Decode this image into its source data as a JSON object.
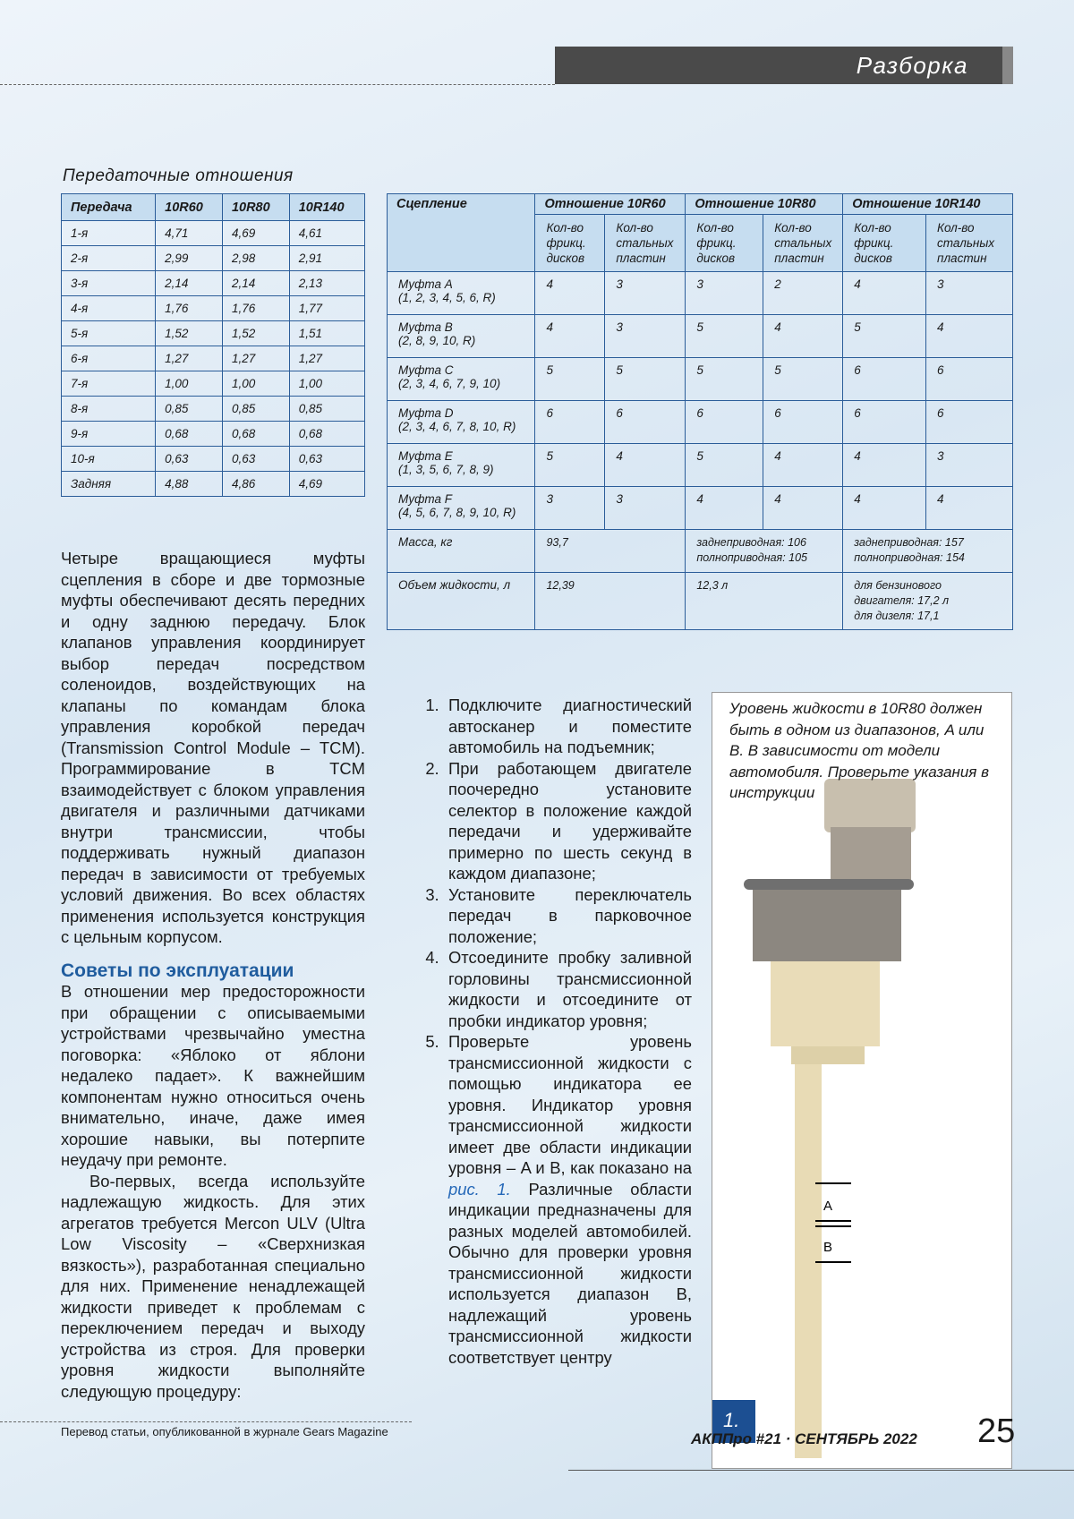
{
  "header": {
    "section": "Разборка"
  },
  "table1": {
    "caption": "Передаточные отношения",
    "headers": [
      "Передача",
      "10R60",
      "10R80",
      "10R140"
    ],
    "rows": [
      [
        "1-я",
        "4,71",
        "4,69",
        "4,61"
      ],
      [
        "2-я",
        "2,99",
        "2,98",
        "2,91"
      ],
      [
        "3-я",
        "2,14",
        "2,14",
        "2,13"
      ],
      [
        "4-я",
        "1,76",
        "1,76",
        "1,77"
      ],
      [
        "5-я",
        "1,52",
        "1,52",
        "1,51"
      ],
      [
        "6-я",
        "1,27",
        "1,27",
        "1,27"
      ],
      [
        "7-я",
        "1,00",
        "1,00",
        "1,00"
      ],
      [
        "8-я",
        "0,85",
        "0,85",
        "0,85"
      ],
      [
        "9-я",
        "0,68",
        "0,68",
        "0,68"
      ],
      [
        "10-я",
        "0,63",
        "0,63",
        "0,63"
      ],
      [
        "Задняя",
        "4,88",
        "4,86",
        "4,69"
      ]
    ]
  },
  "table2": {
    "clutch_header": "Сцепление",
    "groups": [
      "Отношение 10R60",
      "Отношение 10R80",
      "Отношение 10R140"
    ],
    "subheaders": [
      "Кол-во фрикц. дисков",
      "Кол-во стальных пластин",
      "Кол-во фрикц. дисков",
      "Кол-во стальных пластин",
      "Кол-во фрикц. дисков",
      "Кол-во стальных пластин"
    ],
    "rows": [
      {
        "name": "Муфта A",
        "gears": "(1, 2, 3, 4, 5, 6, R)",
        "values": [
          "4",
          "3",
          "3",
          "2",
          "4",
          "3"
        ]
      },
      {
        "name": "Муфта B",
        "gears": "(2, 8, 9, 10, R)",
        "values": [
          "4",
          "3",
          "5",
          "4",
          "5",
          "4"
        ]
      },
      {
        "name": "Муфта C",
        "gears": "(2, 3, 4, 6, 7, 9, 10)",
        "values": [
          "5",
          "5",
          "5",
          "5",
          "6",
          "6"
        ]
      },
      {
        "name": "Муфта D",
        "gears": "(2, 3, 4, 6, 7, 8, 10, R)",
        "values": [
          "6",
          "6",
          "6",
          "6",
          "6",
          "6"
        ]
      },
      {
        "name": "Муфта E",
        "gears": "(1, 3, 5, 6, 7, 8, 9)",
        "values": [
          "5",
          "4",
          "5",
          "4",
          "4",
          "3"
        ]
      },
      {
        "name": "Муфта F",
        "gears": "(4, 5, 6, 7, 8, 9, 10, R)",
        "values": [
          "3",
          "3",
          "4",
          "4",
          "4",
          "4"
        ]
      }
    ],
    "summary": [
      {
        "name": "Масса, кг",
        "values": [
          [
            "93,7"
          ],
          [
            "заднеприводная: 106",
            "полноприводная: 105"
          ],
          [
            "заднеприводная: 157",
            "полноприводная: 154"
          ]
        ]
      },
      {
        "name": "Объем жидкости, л",
        "values": [
          [
            "12,39"
          ],
          [
            "12,3 л"
          ],
          [
            "для бензинового",
            "двигателя: 17,2 л",
            "для дизеля: 17,1"
          ]
        ]
      }
    ]
  },
  "body": {
    "intro": "Четыре вращающиеся муфты сцепления в сборе и две тормозные муфты обеспечивают десять передних и одну заднюю передачу. Блок клапанов управления координирует выбор передач посредством соленоидов, воздействующих на клапаны по командам блока управления коробкой передач (Transmission Control Module – TCM). Программирование в TCM взаимодействует с блоком управления двигателя и различными датчиками внутри трансмиссии, чтобы поддерживать нужный диапазон передач в зависимости от требуемых условий движения. Во всех областях применения используется конструкция с цельным корпусом.",
    "heading": "Советы по эксплуатации",
    "paragraphs": [
      "В отношении мер предосторожности при обращении с описываемыми устройствами чрезвычайно уместна поговорка: «Яблоко от яблони недалеко падает». К важнейшим компонентам нужно относиться очень внимательно, иначе, даже имея хорошие навыки, вы потерпите неудачу при ремонте.",
      "Во-первых, всегда используйте надлежащую жидкость. Для этих агрегатов требуется Mercon ULV (Ultra Low Viscosity – «Сверхнизкая вязкость»), разработанная специально для них. Применение ненадлежащей жидкости приведет к проблемам с переключением передач и выходу устройства из строя. Для проверки уровня жидкости выполняйте следующую процедуру:"
    ],
    "steps": [
      {
        "number": "1.",
        "text": "Подключите диагностический автосканер и поместите автомобиль на подъемник;"
      },
      {
        "number": "2.",
        "text": "При работающем двигателе поочередно установите селектор в положение каждой передачи и удерживайте примерно по шесть секунд в каждом диапазоне;"
      },
      {
        "number": "3.",
        "text": "Установите переключатель передач в парковочное положение;"
      },
      {
        "number": "4.",
        "text": "Отсоедините пробку заливной горловины трансмиссионной жидкости и отсоедините от пробки индикатор уровня;"
      },
      {
        "number": "5.",
        "text": "Проверьте уровень трансмиссионной жидкости с помощью индикатора ее уровня. Индикатор уровня трансмиссионной жидкости имеет две области индикации уровня – A и B, как показано на ",
        "link": "рис. 1.",
        "text_after": " Различные области индикации предназначены для разных моделей автомобилей. Обычно для проверки уровня трансмиссионной жидкости используется диапазон B, надлежащий уровень трансмиссионной жидкости соответствует центру"
      }
    ]
  },
  "figure": {
    "caption": "Уровень жидкости в 10R80 должен быть в одном из диапазонов, A или B. В зависимости от модели автомобиля. Проверьте указания в инструкции",
    "label_a": "A",
    "label_b": "B",
    "number": "1."
  },
  "footer": {
    "credit": "Перевод статьи, опубликованной в журнале Gears Magazine",
    "magazine": "АКППро #21 · СЕНТЯБРЬ 2022",
    "page": "25"
  }
}
